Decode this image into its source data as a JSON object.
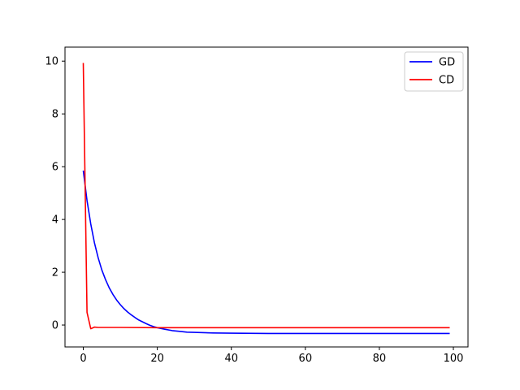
{
  "chart_data": {
    "type": "line",
    "title": "",
    "xlabel": "",
    "ylabel": "",
    "xlim": [
      -4.95,
      103.95
    ],
    "ylim": [
      -0.83,
      10.53
    ],
    "xticks": [
      0,
      20,
      40,
      60,
      80,
      100
    ],
    "yticks": [
      0,
      2,
      4,
      6,
      8,
      10
    ],
    "grid": false,
    "legend_position": "top-right",
    "series": [
      {
        "name": "GD",
        "color": "#0000ff",
        "x": [
          0,
          1,
          2,
          3,
          4,
          5,
          6,
          7,
          8,
          9,
          10,
          11,
          12,
          13,
          14,
          15,
          16,
          17,
          18,
          19,
          20,
          22,
          24,
          26,
          28,
          30,
          35,
          40,
          50,
          60,
          70,
          80,
          90,
          99
        ],
        "y": [
          5.85,
          4.72,
          3.83,
          3.12,
          2.55,
          2.09,
          1.72,
          1.41,
          1.16,
          0.95,
          0.77,
          0.62,
          0.49,
          0.38,
          0.28,
          0.19,
          0.12,
          0.05,
          -0.01,
          -0.06,
          -0.1,
          -0.16,
          -0.21,
          -0.24,
          -0.27,
          -0.28,
          -0.3,
          -0.31,
          -0.32,
          -0.32,
          -0.32,
          -0.32,
          -0.32,
          -0.32
        ]
      },
      {
        "name": "CD",
        "color": "#ff0000",
        "x": [
          0,
          1,
          2,
          3,
          4,
          10,
          20,
          40,
          60,
          80,
          99
        ],
        "y": [
          9.93,
          0.48,
          -0.14,
          -0.08,
          -0.09,
          -0.09,
          -0.1,
          -0.1,
          -0.1,
          -0.1,
          -0.1
        ]
      }
    ]
  }
}
